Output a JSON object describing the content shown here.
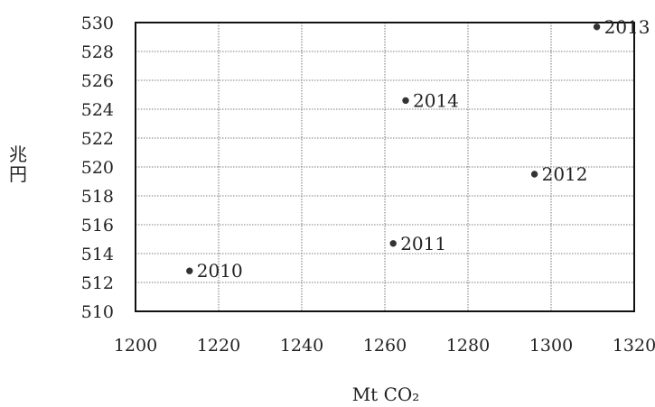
{
  "chart_data": {
    "type": "scatter",
    "title": "",
    "xlabel": "Mt CO₂",
    "ylabel": "兆円",
    "xlim": [
      1200,
      1320
    ],
    "ylim": [
      510,
      530
    ],
    "x_ticks": [
      1200,
      1220,
      1240,
      1260,
      1280,
      1300,
      1320
    ],
    "y_ticks": [
      510,
      512,
      514,
      516,
      518,
      520,
      522,
      524,
      526,
      528,
      530
    ],
    "grid": true,
    "points": [
      {
        "label": "2010",
        "x": 1213,
        "y": 512.8
      },
      {
        "label": "2011",
        "x": 1262,
        "y": 514.7
      },
      {
        "label": "2012",
        "x": 1296,
        "y": 519.5
      },
      {
        "label": "2013",
        "x": 1311,
        "y": 529.7
      },
      {
        "label": "2014",
        "x": 1265,
        "y": 524.6
      }
    ]
  }
}
